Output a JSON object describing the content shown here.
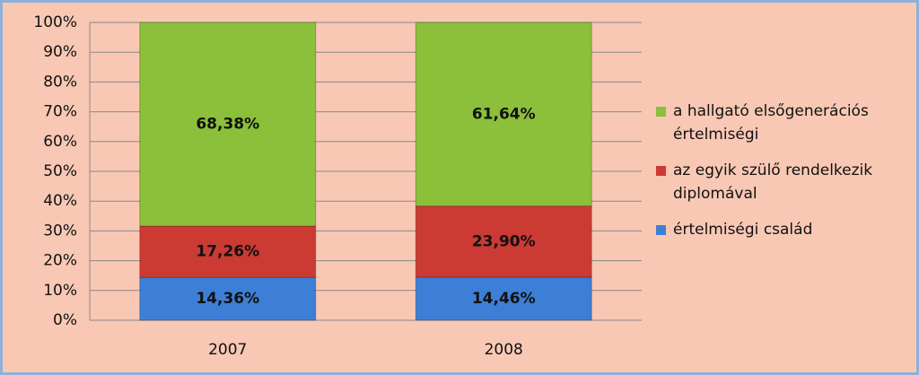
{
  "chart_data": {
    "type": "stacked_bar_percent",
    "categories": [
      "2007",
      "2008"
    ],
    "series": [
      {
        "name": "értelmiségi család",
        "color": "#3d7fd6",
        "values": [
          14.36,
          14.46
        ],
        "value_labels": [
          "14,36%",
          "14,46%"
        ]
      },
      {
        "name": "az egyik szülő rendelkezik diplomával",
        "color": "#cc3a34",
        "values": [
          17.26,
          23.9
        ],
        "value_labels": [
          "17,26%",
          "23,90%"
        ]
      },
      {
        "name": "a hallgató elsőgenerációs értelmiségi",
        "color": "#8cbf3a",
        "values": [
          68.38,
          61.64
        ],
        "value_labels": [
          "68,38%",
          "61,64%"
        ]
      }
    ],
    "ylim": [
      0,
      100
    ],
    "yticks": [
      {
        "value": 0,
        "label": "0%"
      },
      {
        "value": 10,
        "label": "10%"
      },
      {
        "value": 20,
        "label": "20%"
      },
      {
        "value": 30,
        "label": "30%"
      },
      {
        "value": 40,
        "label": "40%"
      },
      {
        "value": 50,
        "label": "50%"
      },
      {
        "value": 60,
        "label": "60%"
      },
      {
        "value": 70,
        "label": "70%"
      },
      {
        "value": 80,
        "label": "80%"
      },
      {
        "value": 90,
        "label": "90%"
      },
      {
        "value": 100,
        "label": "100%"
      }
    ],
    "grid": true,
    "legend": "right"
  }
}
